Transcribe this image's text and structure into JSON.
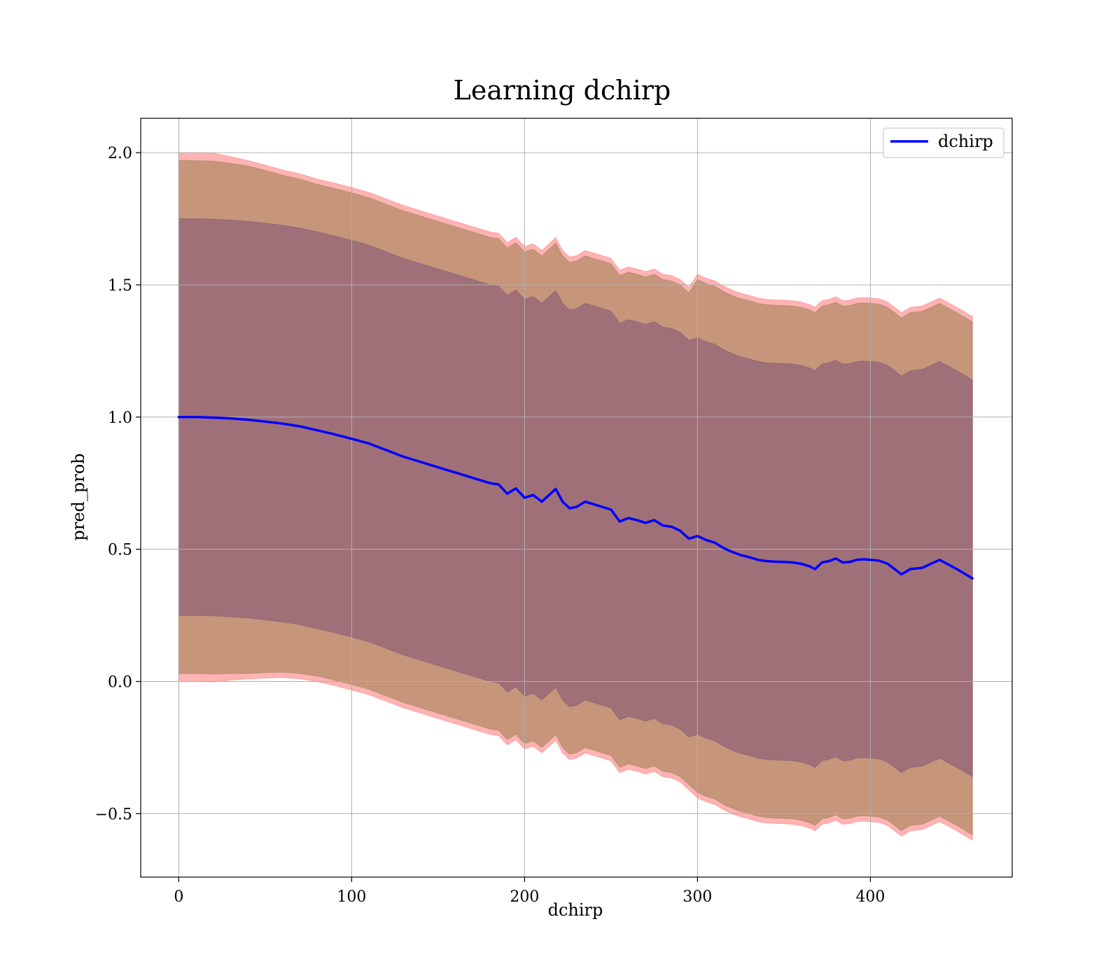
{
  "chart_data": {
    "type": "line",
    "title": "Learning dchirp",
    "xlabel": "dchirp",
    "ylabel": "pred_prob",
    "xlim": [
      -22,
      482
    ],
    "ylim": [
      -0.74,
      2.13
    ],
    "xticks": [
      0,
      100,
      200,
      300,
      400
    ],
    "yticks": [
      -0.5,
      0.0,
      0.5,
      1.0,
      1.5,
      2.0
    ],
    "xtick_labels": [
      "0",
      "100",
      "200",
      "300",
      "400"
    ],
    "ytick_labels": [
      "−0.5",
      "0.0",
      "0.5",
      "1.0",
      "1.5",
      "2.0"
    ],
    "grid": true,
    "legend": {
      "position": "top-right",
      "entries": [
        "dchirp"
      ]
    },
    "colors": {
      "line": "#0000ff",
      "outer_band": "#ff9999",
      "middle_band": "#c6957a",
      "inner_band": "#a07078",
      "grid": "#b0b0b0"
    },
    "series": [
      {
        "name": "dchirp",
        "x": [
          0,
          10,
          20,
          30,
          40,
          50,
          60,
          70,
          80,
          90,
          100,
          110,
          120,
          130,
          140,
          150,
          160,
          170,
          180,
          185,
          190,
          195,
          200,
          205,
          210,
          215,
          218,
          222,
          226,
          230,
          235,
          240,
          245,
          250,
          255,
          260,
          265,
          270,
          275,
          280,
          285,
          290,
          295,
          300,
          305,
          310,
          315,
          320,
          325,
          330,
          335,
          340,
          345,
          350,
          355,
          360,
          365,
          368,
          372,
          376,
          380,
          384,
          388,
          392,
          396,
          400,
          405,
          410,
          418,
          423,
          430,
          440,
          450,
          459
        ],
        "values": [
          1.0,
          1.0,
          0.998,
          0.995,
          0.99,
          0.983,
          0.975,
          0.965,
          0.95,
          0.935,
          0.918,
          0.9,
          0.875,
          0.85,
          0.83,
          0.81,
          0.79,
          0.77,
          0.75,
          0.745,
          0.71,
          0.73,
          0.695,
          0.705,
          0.68,
          0.71,
          0.728,
          0.68,
          0.655,
          0.66,
          0.68,
          0.67,
          0.66,
          0.65,
          0.605,
          0.618,
          0.61,
          0.6,
          0.61,
          0.59,
          0.585,
          0.57,
          0.54,
          0.55,
          0.535,
          0.525,
          0.505,
          0.49,
          0.478,
          0.47,
          0.46,
          0.455,
          0.453,
          0.452,
          0.45,
          0.445,
          0.435,
          0.425,
          0.45,
          0.455,
          0.465,
          0.45,
          0.452,
          0.46,
          0.462,
          0.46,
          0.457,
          0.445,
          0.405,
          0.425,
          0.43,
          0.46,
          0.425,
          0.39
        ]
      }
    ],
    "bands": [
      {
        "level": "outer",
        "half_width": [
          1.0,
          1.0,
          1.0,
          0.99,
          0.98,
          0.97,
          0.96,
          0.955,
          0.95,
          0.95,
          0.95,
          0.95,
          0.95,
          0.95,
          0.95,
          0.95,
          0.95,
          0.95,
          0.95,
          0.95,
          0.95,
          0.95,
          0.95,
          0.95,
          0.95,
          0.95,
          0.95,
          0.95,
          0.95,
          0.95,
          0.95,
          0.95,
          0.95,
          0.95,
          0.95,
          0.95,
          0.95,
          0.95,
          0.95,
          0.95,
          0.95,
          0.95,
          0.95,
          0.99,
          0.99,
          0.99,
          0.99,
          0.99,
          0.99,
          0.99,
          0.99,
          0.99,
          0.99,
          0.99,
          0.99,
          0.99,
          0.99,
          0.99,
          0.99,
          0.99,
          0.99,
          0.99,
          0.99,
          0.99,
          0.99,
          0.99,
          0.99,
          0.99,
          0.99,
          0.99,
          0.99,
          0.99,
          0.99,
          0.99
        ]
      },
      {
        "level": "middle",
        "half_width": [
          0.97,
          0.97,
          0.97,
          0.965,
          0.96,
          0.95,
          0.94,
          0.935,
          0.93,
          0.93,
          0.93,
          0.93,
          0.93,
          0.93,
          0.93,
          0.93,
          0.93,
          0.93,
          0.93,
          0.93,
          0.93,
          0.93,
          0.93,
          0.93,
          0.93,
          0.93,
          0.93,
          0.93,
          0.93,
          0.93,
          0.93,
          0.93,
          0.93,
          0.93,
          0.93,
          0.93,
          0.93,
          0.93,
          0.93,
          0.93,
          0.93,
          0.93,
          0.93,
          0.97,
          0.97,
          0.97,
          0.97,
          0.97,
          0.97,
          0.97,
          0.97,
          0.97,
          0.97,
          0.97,
          0.97,
          0.97,
          0.97,
          0.97,
          0.97,
          0.97,
          0.97,
          0.97,
          0.97,
          0.97,
          0.97,
          0.97,
          0.97,
          0.97,
          0.97,
          0.97,
          0.97,
          0.97,
          0.97,
          0.97
        ]
      },
      {
        "level": "inner",
        "half_width": [
          0.75,
          0.75,
          0.75,
          0.75,
          0.75,
          0.75,
          0.75,
          0.75,
          0.75,
          0.75,
          0.75,
          0.75,
          0.75,
          0.75,
          0.75,
          0.75,
          0.75,
          0.75,
          0.75,
          0.75,
          0.75,
          0.75,
          0.75,
          0.75,
          0.75,
          0.75,
          0.75,
          0.75,
          0.75,
          0.75,
          0.75,
          0.75,
          0.75,
          0.75,
          0.75,
          0.75,
          0.75,
          0.75,
          0.75,
          0.75,
          0.75,
          0.75,
          0.75,
          0.75,
          0.75,
          0.75,
          0.75,
          0.75,
          0.75,
          0.75,
          0.75,
          0.75,
          0.75,
          0.75,
          0.75,
          0.75,
          0.75,
          0.75,
          0.75,
          0.75,
          0.75,
          0.75,
          0.75,
          0.75,
          0.75,
          0.75,
          0.75,
          0.75,
          0.75,
          0.75,
          0.75,
          0.75,
          0.75,
          0.75
        ]
      }
    ]
  }
}
